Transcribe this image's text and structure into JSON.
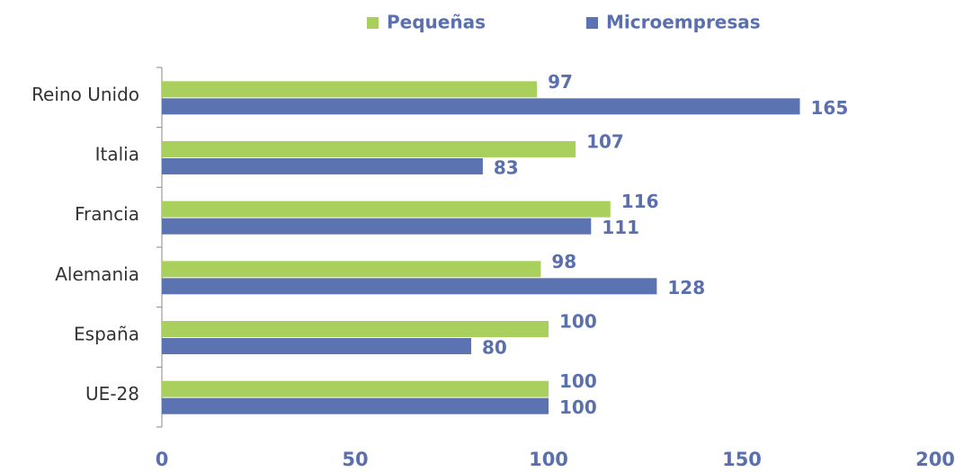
{
  "chart_data": {
    "type": "hbar",
    "categories": [
      "Reino Unido",
      "Italia",
      "Francia",
      "Alemania",
      "España",
      "UE-28"
    ],
    "series": [
      {
        "name": "Pequeñas",
        "color": "#a9d05c",
        "values": [
          97,
          107,
          116,
          98,
          100,
          100
        ]
      },
      {
        "name": "Microempresas",
        "color": "#5b73b0",
        "values": [
          165,
          83,
          111,
          128,
          80,
          100
        ]
      }
    ],
    "xlim": [
      0,
      200
    ],
    "xticks": [
      0,
      50,
      100,
      150,
      200
    ],
    "grid": false,
    "legend": "top"
  }
}
